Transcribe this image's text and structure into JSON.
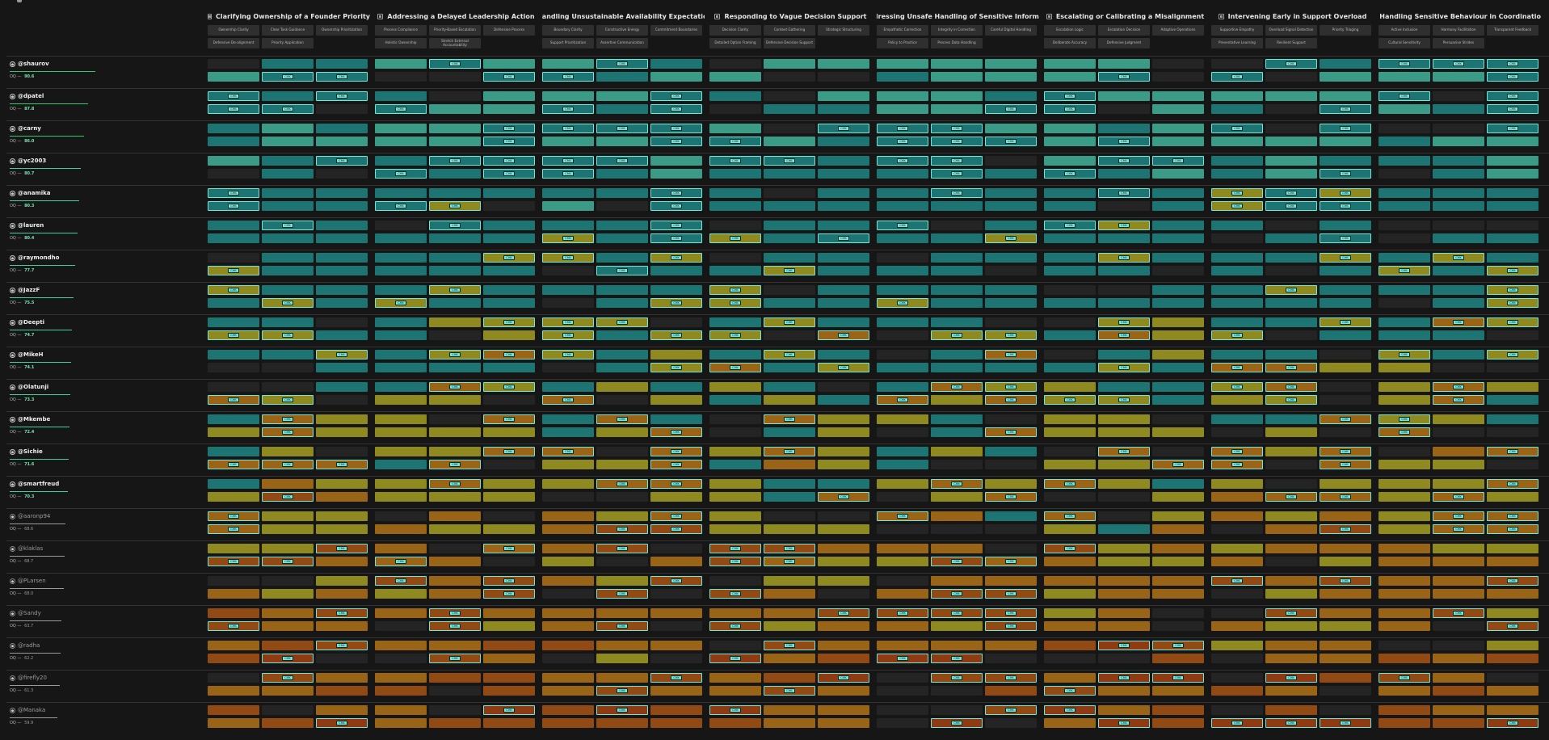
{
  "scenarios": [
    {
      "title": "Clarifying Ownership of a Founder Priority",
      "icon": "scenario-icon",
      "columns": [
        [
          "Ownership Clarity",
          "Clear Task Guidance",
          "Ownership Prioritization"
        ],
        [
          "Defensive De-alignment",
          "Priority Application",
          ""
        ]
      ]
    },
    {
      "title": "Addressing a Delayed Leadership Action",
      "icon": "scenario-icon",
      "columns": [
        [
          "Process Compliance",
          "Priority-Based Escalation",
          "Defensive Process"
        ],
        [
          "Holistic Ownership",
          "Stretch External Accountability",
          ""
        ]
      ]
    },
    {
      "title": "Handling Unsustainable Availability Expectations",
      "icon": "scenario-icon",
      "columns": [
        [
          "Boundary Clarity",
          "Constructive Energy",
          "Commitment Boundaries"
        ],
        [
          "Support Prioritization",
          "Assertive Communication",
          ""
        ]
      ]
    },
    {
      "title": "Responding to Vague Decision Support",
      "icon": "scenario-icon",
      "columns": [
        [
          "Decision Clarity",
          "Context Gathering",
          "Strategic Structuring"
        ],
        [
          "Detailed Option Framing",
          "Defensive Decision Support",
          ""
        ]
      ]
    },
    {
      "title": "Addressing Unsafe Handling of Sensitive Information",
      "icon": "scenario-icon",
      "columns": [
        [
          "Empathetic Correction",
          "Integrity in Correction",
          "Careful Digital Handling"
        ],
        [
          "Policy to Practice",
          "Process Data Handling",
          ""
        ]
      ]
    },
    {
      "title": "Escalating or Calibrating a Misalignment",
      "icon": "scenario-icon",
      "columns": [
        [
          "Escalation Logic",
          "Escalation Decision",
          "Adaptive Operations"
        ],
        [
          "Deliberate Accuracy",
          "Defensive Judgment",
          ""
        ]
      ]
    },
    {
      "title": "Intervening Early in Support Overload",
      "icon": "scenario-icon",
      "columns": [
        [
          "Supportive Empathy",
          "Overload Signal Detection",
          "Priority Triaging"
        ],
        [
          "Preventative Learning",
          "Resilient Support",
          ""
        ]
      ]
    },
    {
      "title": "Handling Sensitive Behaviour in Coordination",
      "icon": "scenario-icon",
      "columns": [
        [
          "Active Inclusion",
          "Harmony Facilitation",
          "Transparent Feedback"
        ],
        [
          "Cultural Sensitivity",
          "Persuasive Strides",
          ""
        ]
      ]
    }
  ],
  "users": [
    {
      "handle": "@shaurov",
      "score_label": "OQ",
      "score": "90.6",
      "score_frac": 0.96,
      "dim": false,
      "bar_color": "#32c76b"
    },
    {
      "handle": "@dpatel",
      "score_label": "OQ",
      "score": "87.8",
      "score_frac": 0.88,
      "dim": false,
      "bar_color": "#32c76b"
    },
    {
      "handle": "@carny",
      "score_label": "OQ",
      "score": "86.0",
      "score_frac": 0.84,
      "dim": false,
      "bar_color": "#32c76b"
    },
    {
      "handle": "@yc2003",
      "score_label": "OQ",
      "score": "80.7",
      "score_frac": 0.8,
      "dim": false,
      "bar_color": "#3ecfa0"
    },
    {
      "handle": "@anamika",
      "score_label": "OQ",
      "score": "80.3",
      "score_frac": 0.78,
      "dim": false,
      "bar_color": "#3ecfa0"
    },
    {
      "handle": "@lauren",
      "score_label": "OQ",
      "score": "80.4",
      "score_frac": 0.76,
      "dim": false,
      "bar_color": "#3ecfa0"
    },
    {
      "handle": "@raymondho",
      "score_label": "OQ",
      "score": "77.7",
      "score_frac": 0.74,
      "dim": false,
      "bar_color": "#3ecfa0"
    },
    {
      "handle": "@JazzF",
      "score_label": "OQ",
      "score": "75.5",
      "score_frac": 0.72,
      "dim": false,
      "bar_color": "#3ecfa0"
    },
    {
      "handle": "@Deepti",
      "score_label": "OQ",
      "score": "74.7",
      "score_frac": 0.7,
      "dim": false,
      "bar_color": "#3ecfa0"
    },
    {
      "handle": "@MikeH",
      "score_label": "OQ",
      "score": "74.1",
      "score_frac": 0.69,
      "dim": false,
      "bar_color": "#3ecfa0"
    },
    {
      "handle": "@Olatunji",
      "score_label": "OQ",
      "score": "73.3",
      "score_frac": 0.68,
      "dim": false,
      "bar_color": "#3ecfa0"
    },
    {
      "handle": "@Mkembe",
      "score_label": "OQ",
      "score": "72.4",
      "score_frac": 0.67,
      "dim": false,
      "bar_color": "#3ecfa0"
    },
    {
      "handle": "@Sichie",
      "score_label": "OQ",
      "score": "71.6",
      "score_frac": 0.66,
      "dim": false,
      "bar_color": "#3ecfa0"
    },
    {
      "handle": "@smartfreud",
      "score_label": "OQ",
      "score": "70.3",
      "score_frac": 0.65,
      "dim": false,
      "bar_color": "#3ecfa0"
    },
    {
      "handle": "@aaronp94",
      "score_label": "OQ",
      "score": "68.6",
      "score_frac": 0.63,
      "dim": true,
      "bar_color": "#9a9a9a"
    },
    {
      "handle": "@klaklas",
      "score_label": "OQ",
      "score": "68.7",
      "score_frac": 0.62,
      "dim": true,
      "bar_color": "#9a9a9a"
    },
    {
      "handle": "@PLarsen",
      "score_label": "OQ",
      "score": "68.0",
      "score_frac": 0.61,
      "dim": true,
      "bar_color": "#9a9a9a"
    },
    {
      "handle": "@Sandy",
      "score_label": "OQ",
      "score": "63.7",
      "score_frac": 0.58,
      "dim": true,
      "bar_color": "#9a9a9a"
    },
    {
      "handle": "@radha",
      "score_label": "OQ",
      "score": "62.2",
      "score_frac": 0.57,
      "dim": true,
      "bar_color": "#9a9a9a"
    },
    {
      "handle": "@firefly20",
      "score_label": "OQ",
      "score": "61.3",
      "score_frac": 0.56,
      "dim": true,
      "bar_color": "#9a9a9a"
    },
    {
      "handle": "@Manaka",
      "score_label": "OQ",
      "score": "59.9",
      "score_frac": 0.54,
      "dim": true,
      "bar_color": "#9a9a9a"
    }
  ],
  "colors": {
    "top": "#3a9b86",
    "good": "#1c7572",
    "mid": "#8f8a1f",
    "warm": "#9a6417",
    "low": "#914a14",
    "bad": "#8e3a12",
    "empty": "#242424",
    "flag_border": "#6ee8d8"
  },
  "flag_chip_label": "CHK"
}
